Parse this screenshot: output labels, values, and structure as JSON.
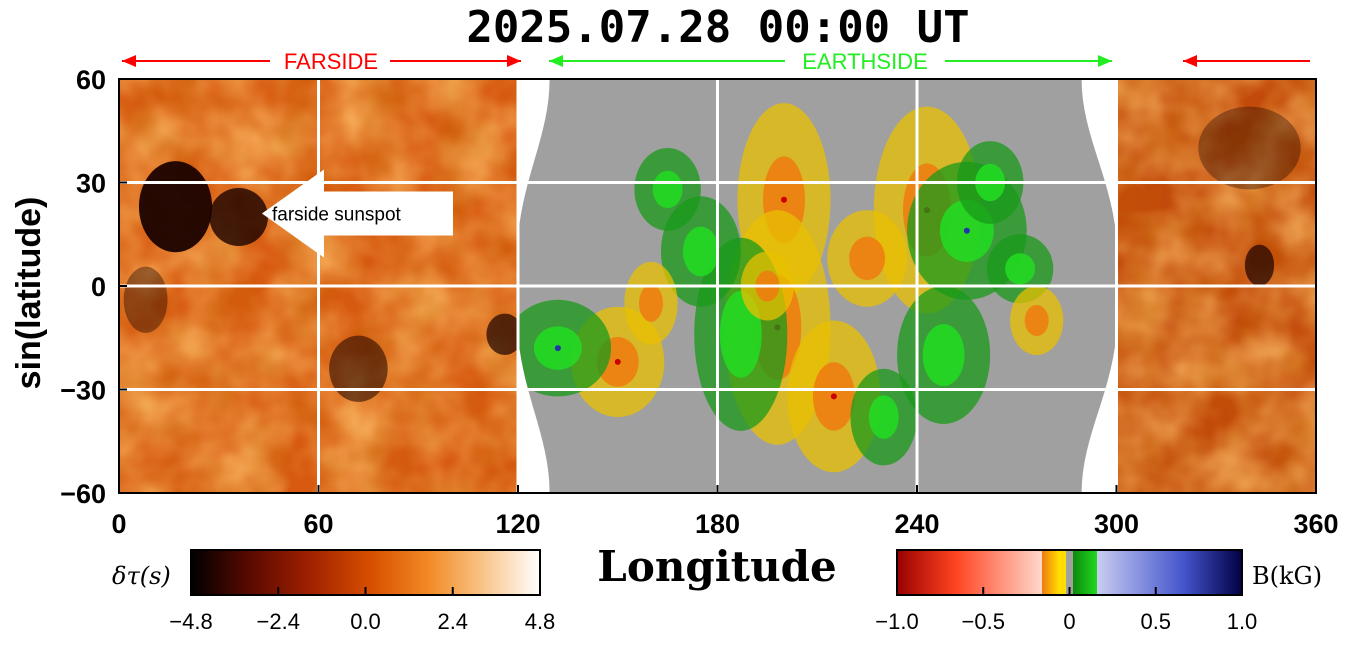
{
  "title": "2025.07.28  00:00 UT",
  "banner": {
    "farside_label": "FARSIDE",
    "earthside_label": "EARTHSIDE",
    "farside_color": "#ff0000",
    "earthside_color": "#22ee22"
  },
  "annotation": {
    "text": "farside sunspot",
    "lat": 21,
    "lon": 43
  },
  "chart_data": {
    "type": "heatmap",
    "xlabel": "Longitude",
    "ylabel": "sin(latitude)",
    "xlim": [
      0,
      360
    ],
    "ylim": [
      -60,
      60
    ],
    "xticks": [
      0,
      60,
      120,
      180,
      240,
      300,
      360
    ],
    "yticks": [
      60,
      30,
      0,
      -30,
      -60
    ],
    "xtick_labels": [
      "0",
      "60",
      "120",
      "180",
      "240",
      "300",
      "360"
    ],
    "ytick_labels": [
      "60",
      "30",
      "0",
      "−30",
      "−60"
    ],
    "grid": true,
    "regions": [
      {
        "name": "farside",
        "lon_range": [
          0,
          120
        ],
        "quantity": "δτ(s)"
      },
      {
        "name": "earthside",
        "lon_range": [
          120,
          300
        ],
        "quantity": "B(kG)"
      },
      {
        "name": "farside",
        "lon_range": [
          300,
          360
        ],
        "quantity": "δτ(s)"
      }
    ],
    "colorbars": [
      {
        "label": "δτ(s)",
        "range": [
          -4.8,
          4.8
        ],
        "ticks": [
          "−4.8",
          "−2.4",
          "0.0",
          "2.4",
          "4.8"
        ],
        "colors": [
          "#000000",
          "#5a0a00",
          "#a02000",
          "#d85000",
          "#f28a25",
          "#f9c58a",
          "#ffffff"
        ]
      },
      {
        "label": "B(kG)",
        "range": [
          -1.0,
          1.0
        ],
        "ticks": [
          "−1.0",
          "−0.5",
          "0",
          "0.5",
          "1.0"
        ],
        "colors": [
          "#990000",
          "#ff5533",
          "#ffd8cc",
          "#f07a10",
          "#ffdd00",
          "#a0a0a0",
          "#0a8a0a",
          "#22d822",
          "#c8ccf0",
          "#4455cc",
          "#000044"
        ]
      }
    ]
  }
}
